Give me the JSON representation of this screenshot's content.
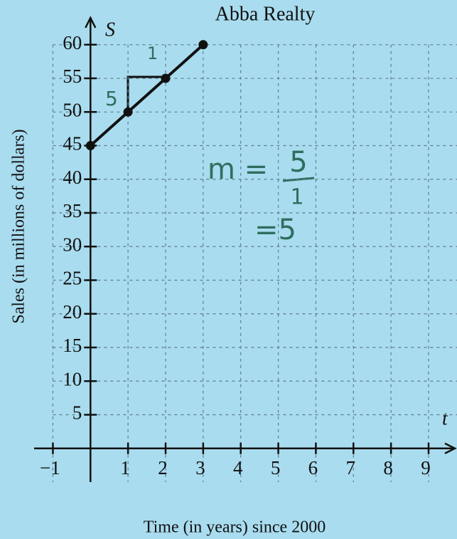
{
  "chart_data": {
    "type": "line",
    "title": "Abba Realty",
    "xlabel": "Time (in years) since 2000",
    "ylabel": "Sales (in millions of dollars)",
    "x_symbol": "t",
    "y_symbol": "S",
    "x": [
      0,
      1,
      2,
      3
    ],
    "series": [
      {
        "color": "#111111",
        "values": [
          45,
          50,
          55,
          60
        ]
      }
    ],
    "xlim": [
      -1.5,
      9.7
    ],
    "ylim": [
      -5,
      64
    ],
    "xticks": [
      {
        "value": -1,
        "label": "−1"
      },
      1,
      2,
      3,
      4,
      5,
      6,
      7,
      8,
      9
    ],
    "yticks": [
      5,
      10,
      15,
      20,
      25,
      30,
      35,
      40,
      45,
      50,
      55,
      60
    ],
    "grid": true,
    "annotations": [
      "1",
      "5",
      "m =",
      "5",
      "1",
      "=5"
    ]
  }
}
